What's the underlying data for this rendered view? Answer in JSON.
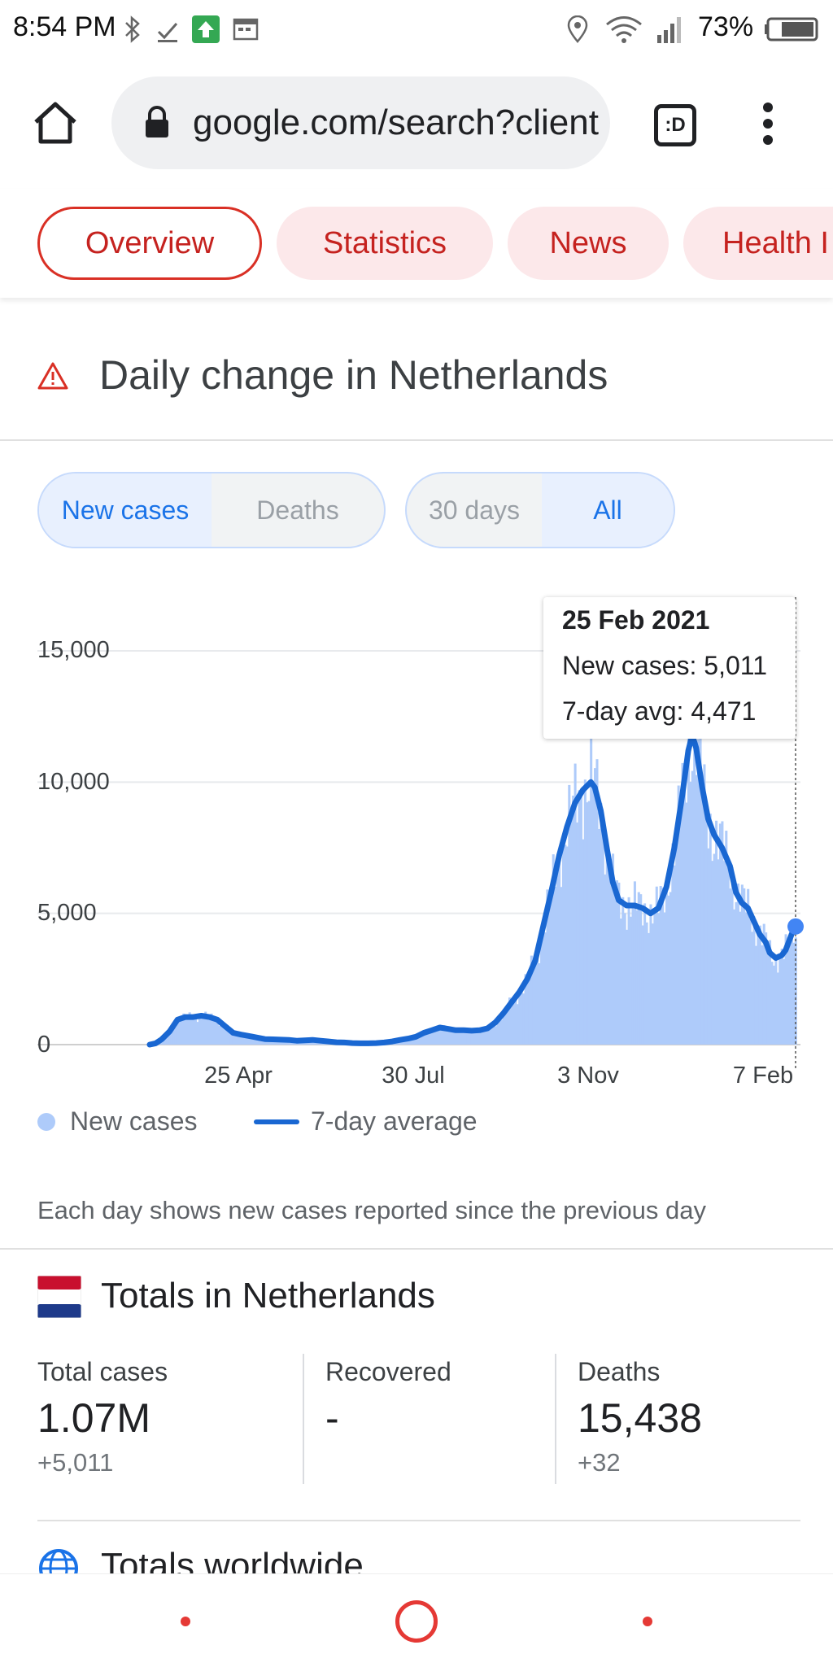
{
  "status_bar": {
    "time": "8:54 PM",
    "battery": "73%",
    "icons": [
      "bluetooth-icon",
      "download-done-icon",
      "upload-icon",
      "calendar-icon",
      "location-icon",
      "wifi-icon",
      "signal-icon",
      "battery-icon"
    ]
  },
  "browser": {
    "url": "google.com/search?client=ms-android",
    "tab_switcher": ":D",
    "icons": [
      "home-icon",
      "lock-icon",
      "tab-switcher-icon",
      "more-vert-icon"
    ]
  },
  "tabs": [
    {
      "label": "Overview",
      "active": true
    },
    {
      "label": "Statistics",
      "active": false
    },
    {
      "label": "News",
      "active": false
    },
    {
      "label": "Health I",
      "active": false
    }
  ],
  "section": {
    "title": "Daily change in Netherlands",
    "icon": "warning-icon"
  },
  "toggles": {
    "metric": [
      {
        "label": "New cases",
        "selected": true
      },
      {
        "label": "Deaths",
        "selected": false
      }
    ],
    "range": [
      {
        "label": "30 days",
        "selected": false
      },
      {
        "label": "All",
        "selected": true
      }
    ]
  },
  "tooltip": {
    "date": "25 Feb 2021",
    "new_cases": "New cases: 5,011",
    "avg": "7-day avg: 4,471"
  },
  "chart_data": {
    "type": "area",
    "x_ticks": [
      "25 Apr",
      "30 Jul",
      "3 Nov",
      "7 Feb"
    ],
    "y_ticks": [
      "15,000",
      "10,000",
      "5,000",
      "0"
    ],
    "ylim": [
      0,
      15000
    ],
    "grid": true,
    "legend_position": "bottom",
    "series": [
      {
        "name": "7-day average",
        "kind": "line",
        "color": "#1967d2",
        "points": [
          [
            0,
            0
          ],
          [
            3,
            50
          ],
          [
            6,
            200
          ],
          [
            10,
            500
          ],
          [
            14,
            950
          ],
          [
            18,
            1050
          ],
          [
            22,
            1050
          ],
          [
            26,
            1100
          ],
          [
            30,
            1050
          ],
          [
            34,
            950
          ],
          [
            38,
            700
          ],
          [
            42,
            450
          ],
          [
            46,
            380
          ],
          [
            50,
            330
          ],
          [
            54,
            270
          ],
          [
            58,
            210
          ],
          [
            62,
            200
          ],
          [
            66,
            190
          ],
          [
            70,
            180
          ],
          [
            74,
            150
          ],
          [
            78,
            160
          ],
          [
            82,
            180
          ],
          [
            86,
            150
          ],
          [
            90,
            120
          ],
          [
            94,
            90
          ],
          [
            98,
            80
          ],
          [
            102,
            60
          ],
          [
            106,
            50
          ],
          [
            110,
            50
          ],
          [
            114,
            60
          ],
          [
            118,
            80
          ],
          [
            122,
            120
          ],
          [
            126,
            180
          ],
          [
            130,
            230
          ],
          [
            134,
            300
          ],
          [
            138,
            450
          ],
          [
            142,
            550
          ],
          [
            146,
            650
          ],
          [
            150,
            600
          ],
          [
            154,
            550
          ],
          [
            158,
            550
          ],
          [
            162,
            530
          ],
          [
            166,
            550
          ],
          [
            170,
            620
          ],
          [
            174,
            850
          ],
          [
            178,
            1200
          ],
          [
            182,
            1600
          ],
          [
            186,
            2000
          ],
          [
            190,
            2500
          ],
          [
            194,
            3200
          ],
          [
            198,
            4500
          ],
          [
            202,
            5800
          ],
          [
            206,
            7200
          ],
          [
            210,
            8300
          ],
          [
            214,
            9200
          ],
          [
            218,
            9700
          ],
          [
            222,
            10000
          ],
          [
            224,
            9800
          ],
          [
            227,
            8900
          ],
          [
            230,
            7500
          ],
          [
            233,
            6200
          ],
          [
            236,
            5500
          ],
          [
            240,
            5300
          ],
          [
            244,
            5300
          ],
          [
            248,
            5200
          ],
          [
            252,
            5000
          ],
          [
            256,
            5200
          ],
          [
            260,
            6000
          ],
          [
            264,
            7500
          ],
          [
            268,
            9500
          ],
          [
            271,
            11200
          ],
          [
            273,
            11800
          ],
          [
            275,
            11300
          ],
          [
            278,
            9800
          ],
          [
            281,
            8600
          ],
          [
            284,
            8000
          ],
          [
            288,
            7500
          ],
          [
            292,
            6800
          ],
          [
            295,
            5800
          ],
          [
            298,
            5400
          ],
          [
            301,
            5200
          ],
          [
            304,
            4700
          ],
          [
            307,
            4200
          ],
          [
            310,
            3900
          ],
          [
            312,
            3500
          ],
          [
            315,
            3300
          ],
          [
            318,
            3400
          ],
          [
            320,
            3600
          ],
          [
            323,
            4200
          ],
          [
            325,
            4500
          ]
        ]
      },
      {
        "name": "New cases",
        "kind": "bars",
        "color": "#aecbfa"
      }
    ]
  },
  "legend": [
    {
      "label": "New cases"
    },
    {
      "label": "7-day average"
    }
  ],
  "footnote": "Each day shows new cases reported since the previous day",
  "totals": {
    "title": "Totals in Netherlands",
    "flag_icon": "netherlands-flag-icon",
    "columns": [
      {
        "label": "Total cases",
        "value": "1.07M",
        "delta": "+5,011"
      },
      {
        "label": "Recovered",
        "value": "-",
        "delta": ""
      },
      {
        "label": "Deaths",
        "value": "15,438",
        "delta": "+32"
      }
    ]
  },
  "worldwide": {
    "title": "Totals worldwide",
    "icon": "globe-icon"
  },
  "nav": {
    "icons": [
      "back-dot-icon",
      "home-circle-icon",
      "recents-dot-icon"
    ]
  }
}
